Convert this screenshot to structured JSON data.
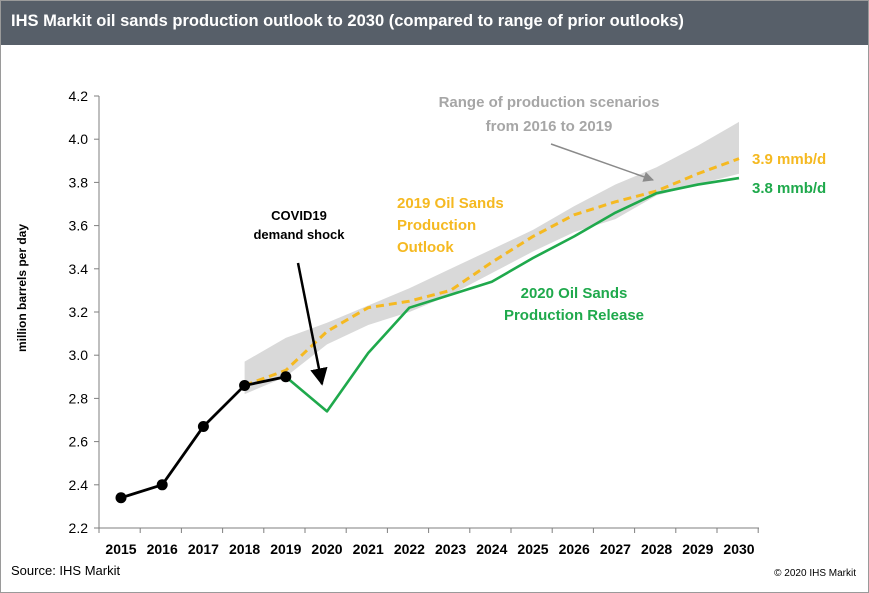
{
  "header": {
    "title": "IHS Markit oil sands production outlook to 2030 (compared to range of prior outlooks)"
  },
  "footer": {
    "source": "Source: IHS Markit",
    "copyright": "© 2020 IHS Markit"
  },
  "colors": {
    "title_bar": "#575f69",
    "range_band": "#d9d9d9",
    "outlook_2019": "#f5b921",
    "release_2020": "#1fa94c",
    "history": "#000000",
    "annotation_gray": "#a6a6a6"
  },
  "chart_data": {
    "type": "line",
    "title": "",
    "xlabel": "",
    "ylabel": "million barrels per day",
    "ylim": [
      2.2,
      4.2
    ],
    "y_ticks": [
      "2.2",
      "2.4",
      "2.6",
      "2.8",
      "3.0",
      "3.2",
      "3.4",
      "3.6",
      "3.8",
      "4.0",
      "4.2"
    ],
    "categories": [
      "2015",
      "2016",
      "2017",
      "2018",
      "2019",
      "2020",
      "2021",
      "2022",
      "2023",
      "2024",
      "2025",
      "2026",
      "2027",
      "2028",
      "2029",
      "2030"
    ],
    "grid": false,
    "range_band": {
      "x": [
        "2018",
        "2019",
        "2020",
        "2021",
        "2022",
        "2023",
        "2024",
        "2025",
        "2026",
        "2027",
        "2028",
        "2029",
        "2030"
      ],
      "low": [
        2.82,
        2.9,
        3.05,
        3.14,
        3.2,
        3.28,
        3.38,
        3.48,
        3.57,
        3.63,
        3.74,
        3.79,
        3.84
      ],
      "high": [
        2.97,
        3.08,
        3.15,
        3.23,
        3.31,
        3.4,
        3.49,
        3.58,
        3.69,
        3.79,
        3.87,
        3.97,
        4.08
      ]
    },
    "series": [
      {
        "x": [
          "2015",
          "2016",
          "2017",
          "2018",
          "2019"
        ],
        "values": [
          2.34,
          2.4,
          2.67,
          2.86,
          2.9
        ],
        "style": "solid-markers"
      },
      {
        "name": "2019 Oil Sands Production Outlook",
        "x": [
          "2018",
          "2019",
          "2020",
          "2021",
          "2022",
          "2023",
          "2024",
          "2025",
          "2026",
          "2027",
          "2028",
          "2029",
          "2030"
        ],
        "values": [
          2.86,
          2.93,
          3.11,
          3.22,
          3.25,
          3.3,
          3.43,
          3.55,
          3.65,
          3.71,
          3.76,
          3.84,
          3.91
        ],
        "style": "dashed"
      },
      {
        "name": "2020 Oil Sands Production Release",
        "x": [
          "2019",
          "2020",
          "2021",
          "2022",
          "2023",
          "2024",
          "2025",
          "2026",
          "2027",
          "2028",
          "2029",
          "2030"
        ],
        "values": [
          2.9,
          2.74,
          3.01,
          3.22,
          3.28,
          3.34,
          3.45,
          3.55,
          3.66,
          3.75,
          3.79,
          3.82
        ],
        "style": "solid"
      }
    ],
    "annotations": {
      "range_label": [
        "Range of production scenarios",
        "from 2016 to 2019"
      ],
      "outlook_2019_label": [
        "2019 Oil Sands",
        "Production",
        "Outlook"
      ],
      "release_2020_label": [
        "2020 Oil Sands",
        "Production Release"
      ],
      "covid_label": [
        "COVID19",
        "demand shock"
      ],
      "end_2019_label": "3.9 mmb/d",
      "end_2020_label": "3.8 mmb/d"
    }
  }
}
